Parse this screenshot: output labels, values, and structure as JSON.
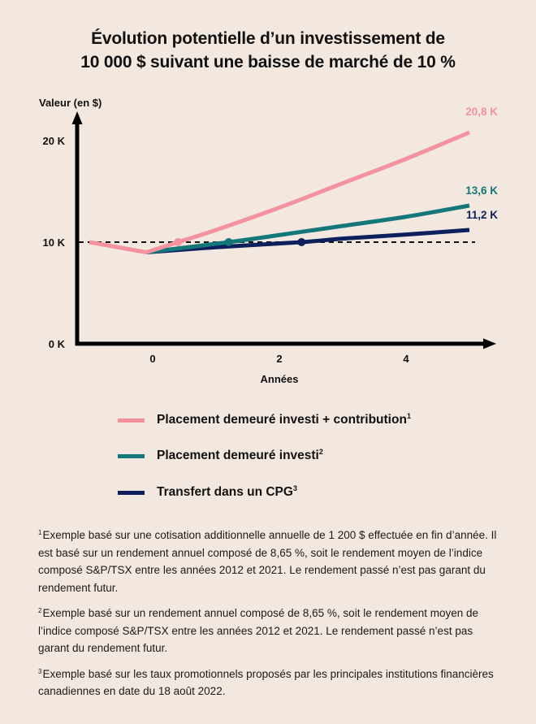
{
  "title": {
    "line1": "Évolution potentielle d’un investissement de",
    "line2": "10 000 $ suivant une baisse de marché de 10 %"
  },
  "colors": {
    "background": "#f3e8e0",
    "axis": "#000000",
    "contribution": "#f4929f",
    "invested": "#14777a",
    "gic": "#0d1f5c"
  },
  "chart_data": {
    "type": "line",
    "title": "Évolution potentielle d’un investissement de 10 000 $ suivant une baisse de marché de 10 %",
    "xlabel": "Années",
    "ylabel": "Valeur (en $)",
    "xlim": [
      -1.1,
      5.4
    ],
    "ylim": [
      0,
      21.5
    ],
    "x_ticks": [
      0,
      2,
      4
    ],
    "x_tick_labels": [
      "0",
      "2",
      "4"
    ],
    "y_ticks": [
      0,
      10,
      20
    ],
    "y_tick_labels": [
      "0 K",
      "10 K",
      "20 K"
    ],
    "y_units": "milliers de $",
    "reference_line": {
      "y": 10,
      "style": "dashed",
      "label": "10 K"
    },
    "grid": false,
    "legend_position": "bottom",
    "series": [
      {
        "name": "Placement demeuré investi + contribution",
        "footnote": "1",
        "color_key": "contribution",
        "points": [
          [
            -1,
            10
          ],
          [
            -0.1,
            9
          ],
          [
            0.4,
            10
          ],
          [
            1,
            11.2
          ],
          [
            2,
            13.4
          ],
          [
            3,
            15.8
          ],
          [
            4,
            18.2
          ],
          [
            5,
            20.8
          ]
        ],
        "marker": {
          "x": 0.4,
          "y": 10
        },
        "end_label": "20,8 K"
      },
      {
        "name": "Placement demeuré investi",
        "footnote": "2",
        "color_key": "invested",
        "points": [
          [
            -0.1,
            9
          ],
          [
            1.2,
            10
          ],
          [
            2,
            10.7
          ],
          [
            3,
            11.6
          ],
          [
            4,
            12.5
          ],
          [
            5,
            13.6
          ]
        ],
        "marker": {
          "x": 1.2,
          "y": 10
        },
        "end_label": "13,6 K"
      },
      {
        "name": "Transfert dans un CPG",
        "footnote": "3",
        "color_key": "gic",
        "points": [
          [
            -0.1,
            9
          ],
          [
            1,
            9.5
          ],
          [
            2.35,
            10
          ],
          [
            3,
            10.35
          ],
          [
            4,
            10.75
          ],
          [
            5,
            11.2
          ]
        ],
        "marker": {
          "x": 2.35,
          "y": 10
        },
        "end_label": "11,2 K"
      }
    ]
  },
  "legend": [
    {
      "label": "Placement demeuré investi + contribution",
      "sup": "1",
      "color_key": "contribution"
    },
    {
      "label": "Placement demeuré investi",
      "sup": "2",
      "color_key": "invested"
    },
    {
      "label": "Transfert dans un CPG",
      "sup": "3",
      "color_key": "gic"
    }
  ],
  "notes": [
    {
      "sup": "1",
      "text": "Exemple basé sur une cotisation additionnelle annuelle de 1 200 $ effectuée en fin d’année. Il est basé sur un rendement annuel composé de 8,65 %, soit le rendement moyen de l’indice composé S&P/TSX entre les années 2012 et 2021. Le rendement passé n’est pas garant du rendement futur."
    },
    {
      "sup": "2",
      "text": "Exemple basé sur un rendement annuel composé de 8,65 %, soit le rendement moyen de l’indice composé S&P/TSX entre les années 2012 et 2021. Le rendement passé n’est pas garant du rendement futur."
    },
    {
      "sup": "3",
      "text": "Exemple basé sur les taux promotionnels proposés par les principales institutions financières canadiennes en date du 18 août 2022."
    }
  ]
}
